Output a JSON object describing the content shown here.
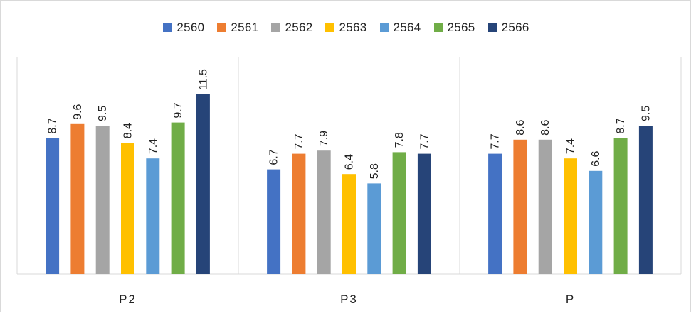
{
  "chart_data": {
    "type": "bar",
    "categories": [
      "P2",
      "P3",
      "P"
    ],
    "series": [
      {
        "name": "2560",
        "color": "#4472c4",
        "values": [
          8.7,
          6.7,
          7.7
        ]
      },
      {
        "name": "2561",
        "color": "#ed7d31",
        "values": [
          9.6,
          7.7,
          8.6
        ]
      },
      {
        "name": "2562",
        "color": "#a5a5a5",
        "values": [
          9.5,
          7.9,
          8.6
        ]
      },
      {
        "name": "2563",
        "color": "#ffc000",
        "values": [
          8.4,
          6.4,
          7.4
        ]
      },
      {
        "name": "2564",
        "color": "#5b9bd5",
        "values": [
          7.4,
          5.8,
          6.6
        ]
      },
      {
        "name": "2565",
        "color": "#70ad47",
        "values": [
          9.7,
          7.8,
          8.7
        ]
      },
      {
        "name": "2566",
        "color": "#264478",
        "values": [
          11.5,
          7.7,
          9.5
        ]
      }
    ],
    "title": "",
    "xlabel": "",
    "ylabel": "",
    "ylim": [
      0,
      12
    ],
    "legend": "top",
    "grid": false,
    "category_separators": true
  }
}
